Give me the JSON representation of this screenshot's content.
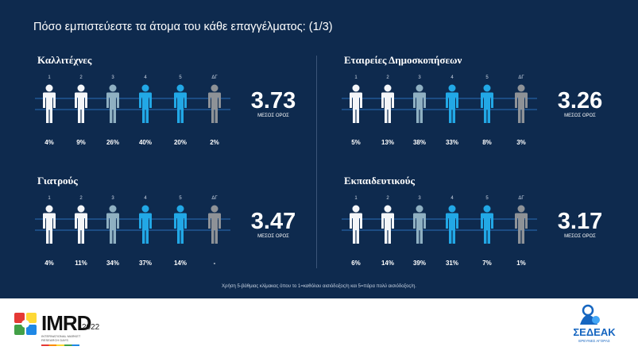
{
  "title": "Πόσο εμπιστεύεστε τα άτομα του κάθε επαγγέλματος: (1/3)",
  "scale_labels": [
    "1",
    "2",
    "3",
    "4",
    "5",
    "ΔΓ"
  ],
  "mean_label": "ΜΕΣΟΣ ΟΡΟΣ",
  "colors": {
    "background": "#0e2a4e",
    "figure_white": "#f4f6f9",
    "figure_light_steel": "#8fb0c2",
    "figure_blue": "#22a8e6",
    "figure_gray": "#8e9297",
    "grid_line": "#2b6fb8"
  },
  "figure_color_keys": [
    "figure_white",
    "figure_white",
    "figure_light_steel",
    "figure_blue",
    "figure_blue",
    "figure_gray"
  ],
  "icon": "person-icon",
  "chart_data": [
    {
      "type": "table",
      "title": "Καλλιτέχνες",
      "categories": [
        "1",
        "2",
        "3",
        "4",
        "5",
        "ΔΓ"
      ],
      "values": [
        "4%",
        "9%",
        "26%",
        "40%",
        "20%",
        "2%"
      ],
      "mean": "3.73"
    },
    {
      "type": "table",
      "title": "Εταιρείες Δημοσκοπήσεων",
      "categories": [
        "1",
        "2",
        "3",
        "4",
        "5",
        "ΔΓ"
      ],
      "values": [
        "5%",
        "13%",
        "38%",
        "33%",
        "8%",
        "3%"
      ],
      "mean": "3.26"
    },
    {
      "type": "table",
      "title": "Γιατρούς",
      "categories": [
        "1",
        "2",
        "3",
        "4",
        "5",
        "ΔΓ"
      ],
      "values": [
        "4%",
        "11%",
        "34%",
        "37%",
        "14%",
        "-"
      ],
      "mean": "3.47"
    },
    {
      "type": "table",
      "title": "Εκπαιδευτικούς",
      "categories": [
        "1",
        "2",
        "3",
        "4",
        "5",
        "ΔΓ"
      ],
      "values": [
        "6%",
        "14%",
        "39%",
        "31%",
        "7%",
        "1%"
      ],
      "mean": "3.17"
    }
  ],
  "note": "Χρήση 5-βάθμιας κλίμακας όπου το 1=καθόλου αισιόδοξος/η και 5=πάρα πολύ αισιόδοξος/η.",
  "footer": {
    "imrd_logo": "IMRD",
    "imrd_year": "2022",
    "imrd_subtitle": "INTERNATIONAL MARKET RESEARCH DAYS",
    "sedeak_logo": "ΣΕΔΕΑΚ",
    "sedeak_subtitle": "ΕΡΕΥΝΕΣ ΑΓΟΡΑΣ"
  }
}
